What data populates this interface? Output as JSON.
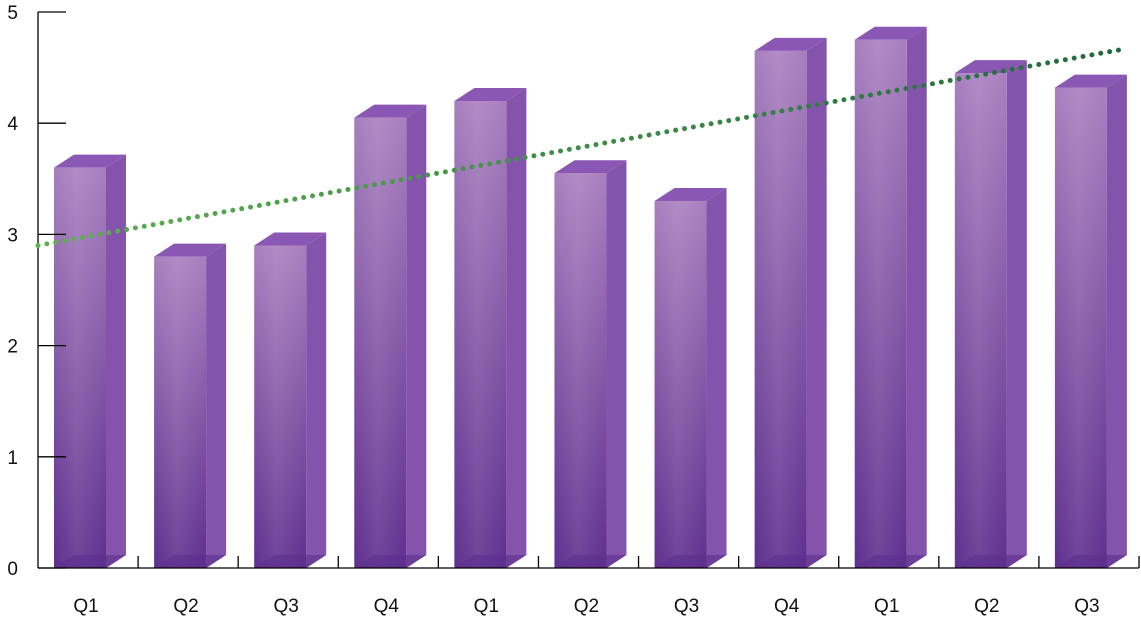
{
  "chart_data": {
    "type": "bar",
    "categories": [
      "Q1",
      "Q2",
      "Q3",
      "Q4",
      "Q1",
      "Q2",
      "Q3",
      "Q4",
      "Q1",
      "Q2",
      "Q3"
    ],
    "values": [
      3.6,
      2.8,
      2.9,
      4.05,
      4.2,
      3.55,
      3.3,
      4.65,
      4.75,
      4.45,
      4.32
    ],
    "title": "",
    "xlabel": "",
    "ylabel": "",
    "ylim": [
      0,
      5
    ],
    "yticks": [
      0,
      1,
      2,
      3,
      4,
      5
    ],
    "grid": false,
    "legend": "none",
    "bar_style": "3d",
    "trendline": {
      "type": "linear",
      "style": "dotted",
      "start_value": 2.9,
      "end_value": 4.66
    },
    "colors": {
      "bar_top": "#a87fbe",
      "bar_bottom": "#5e2f8e",
      "bar_side": "#7d4aa8",
      "bar_cap": "#8a58b4",
      "trend_start": "#5eb04f",
      "trend_end": "#1f6a3c"
    }
  }
}
